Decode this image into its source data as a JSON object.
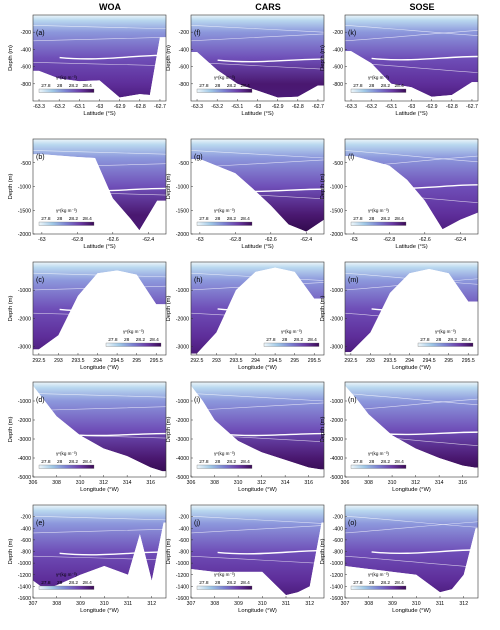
{
  "figure": {
    "columns": [
      "WOA",
      "CARS",
      "SOSE"
    ],
    "colorbar": {
      "label": "γⁿ(kg m⁻³)",
      "ticks": [
        "27.8",
        "28",
        "28.2",
        "28.4"
      ],
      "range": [
        27.7,
        28.5
      ],
      "colors": [
        "#eef6fa",
        "#9ec7e6",
        "#7a7ed0",
        "#6a3aa6",
        "#3a0a55"
      ]
    },
    "ylabel": "Depth (m)",
    "rows": [
      {
        "xlabel": "Latitude (°S)",
        "xticks": [
          "-63.3",
          "-63.2",
          "-63.1",
          "-63",
          "-62.9",
          "-62.8",
          "-62.7"
        ],
        "xrange": [
          -63.33,
          -62.67
        ],
        "yticks": [
          "-200",
          "-400",
          "-600",
          "-800"
        ],
        "yrange": [
          -1000,
          0
        ],
        "legendPos": "bottom-left",
        "panels": [
          {
            "letter": "(a)",
            "deep": 0.45
          },
          {
            "letter": "(f)",
            "deep": 0.75
          },
          {
            "letter": "(k)",
            "deep": 0.55
          }
        ]
      },
      {
        "xlabel": "Latitude (°S)",
        "xticks": [
          "-63",
          "-62.8",
          "-62.6",
          "-62.4"
        ],
        "xrange": [
          -63.05,
          -62.3
        ],
        "yticks": [
          "-500",
          "-1000",
          "-1500",
          "-2000"
        ],
        "yrange": [
          -2000,
          0
        ],
        "legendPos": "bottom-left",
        "panels": [
          {
            "letter": "(b)",
            "deep": 0.8
          },
          {
            "letter": "(g)",
            "deep": 0.85
          },
          {
            "letter": "(l)",
            "deep": 0.55
          }
        ]
      },
      {
        "xlabel": "Longitude (°W)",
        "xticks": [
          "292.5",
          "293",
          "293.5",
          "294",
          "294.5",
          "295",
          "295.5"
        ],
        "xrange": [
          292.35,
          295.75
        ],
        "yticks": [
          "-1000",
          "-2000",
          "-3000"
        ],
        "yrange": [
          -3300,
          0
        ],
        "legendPos": "bottom-right",
        "panels": [
          {
            "letter": "(c)",
            "deep": 0.6
          },
          {
            "letter": "(h)",
            "deep": 0.55
          },
          {
            "letter": "(m)",
            "deep": 0.55
          }
        ]
      },
      {
        "xlabel": "Longitude (°W)",
        "xticks": [
          "306",
          "308",
          "310",
          "312",
          "314",
          "316"
        ],
        "xrange": [
          306,
          317.3
        ],
        "yticks": [
          "-1000",
          "-2000",
          "-3000",
          "-4000",
          "-5000"
        ],
        "yrange": [
          -5000,
          0
        ],
        "legendPos": "bottom-left",
        "panels": [
          {
            "letter": "(d)",
            "deep": 0.95
          },
          {
            "letter": "(i)",
            "deep": 0.95
          },
          {
            "letter": "(n)",
            "deep": 0.85
          }
        ]
      },
      {
        "xlabel": "Longitude (°W)",
        "xticks": [
          "307",
          "308",
          "309",
          "310",
          "311",
          "312"
        ],
        "xrange": [
          307,
          312.6
        ],
        "yticks": [
          "-200",
          "-400",
          "-600",
          "-800",
          "-1000",
          "-1200",
          "-1400",
          "-1600"
        ],
        "yrange": [
          -1600,
          0
        ],
        "legendPos": "bottom-left",
        "panels": [
          {
            "letter": "(e)",
            "deep": 0.7
          },
          {
            "letter": "(j)",
            "deep": 0.6
          },
          {
            "letter": "(o)",
            "deep": 0.55
          }
        ]
      }
    ]
  },
  "chart_data": [
    {
      "type": "heatmap",
      "panel": "(a)",
      "xlabel": "Latitude (°S)",
      "ylabel": "Depth (m)",
      "xlim": [
        -63.33,
        -62.67
      ],
      "ylim": [
        -1000,
        0
      ],
      "colorbar_label": "γⁿ(kg m⁻³)",
      "colorbar_ticks": [
        27.8,
        28,
        28.2,
        28.4
      ],
      "bathymetry": [
        [
          -63.3,
          -650
        ],
        [
          -63.2,
          -740
        ],
        [
          -63.1,
          -770
        ],
        [
          -63.0,
          -760
        ],
        [
          -62.9,
          -960
        ],
        [
          -62.8,
          -920
        ],
        [
          -62.75,
          -930
        ],
        [
          -62.7,
          -260
        ]
      ]
    },
    {
      "type": "heatmap",
      "panel": "(f)",
      "xlabel": "Latitude (°S)",
      "ylabel": "Depth (m)",
      "xlim": [
        -63.33,
        -62.67
      ],
      "ylim": [
        -1000,
        0
      ],
      "colorbar_label": "γⁿ(kg m⁻³)",
      "colorbar_ticks": [
        27.8,
        28,
        28.2,
        28.4
      ],
      "bathymetry": [
        [
          -63.3,
          -430
        ],
        [
          -63.2,
          -640
        ],
        [
          -63.1,
          -800
        ],
        [
          -63.0,
          -880
        ],
        [
          -62.9,
          -960
        ],
        [
          -62.8,
          -950
        ],
        [
          -62.7,
          -820
        ]
      ]
    },
    {
      "type": "heatmap",
      "panel": "(k)",
      "xlabel": "Latitude (°S)",
      "ylabel": "Depth (m)",
      "xlim": [
        -63.33,
        -62.67
      ],
      "ylim": [
        -1000,
        0
      ],
      "colorbar_label": "γⁿ(kg m⁻³)",
      "colorbar_ticks": [
        27.8,
        28,
        28.2,
        28.4
      ],
      "bathymetry": [
        [
          -63.3,
          -420
        ],
        [
          -63.2,
          -560
        ],
        [
          -63.1,
          -800
        ],
        [
          -63.0,
          -840
        ],
        [
          -62.9,
          -950
        ],
        [
          -62.8,
          -930
        ],
        [
          -62.7,
          -780
        ]
      ]
    },
    {
      "type": "heatmap",
      "panel": "(b)",
      "xlabel": "Latitude (°S)",
      "ylabel": "Depth (m)",
      "xlim": [
        -63.05,
        -62.3
      ],
      "ylim": [
        -2000,
        0
      ],
      "colorbar_label": "γⁿ(kg m⁻³)",
      "colorbar_ticks": [
        27.8,
        28,
        28.2,
        28.4
      ],
      "bathymetry": [
        [
          -63.0,
          -320
        ],
        [
          -62.8,
          -380
        ],
        [
          -62.7,
          -400
        ],
        [
          -62.6,
          -1250
        ],
        [
          -62.5,
          -1680
        ],
        [
          -62.45,
          -1920
        ],
        [
          -62.35,
          -1300
        ]
      ]
    },
    {
      "type": "heatmap",
      "panel": "(g)",
      "xlabel": "Latitude (°S)",
      "ylabel": "Depth (m)",
      "xlim": [
        -63.05,
        -62.3
      ],
      "ylim": [
        -2000,
        0
      ],
      "colorbar_label": "γⁿ(kg m⁻³)",
      "colorbar_ticks": [
        27.8,
        28,
        28.2,
        28.4
      ],
      "bathymetry": [
        [
          -63.0,
          -420
        ],
        [
          -62.8,
          -720
        ],
        [
          -62.7,
          -1050
        ],
        [
          -62.6,
          -1400
        ],
        [
          -62.5,
          -1800
        ],
        [
          -62.4,
          -1950
        ],
        [
          -62.3,
          -1700
        ]
      ]
    },
    {
      "type": "heatmap",
      "panel": "(l)",
      "xlabel": "Latitude (°S)",
      "ylabel": "Depth (m)",
      "xlim": [
        -63.05,
        -62.3
      ],
      "ylim": [
        -2000,
        0
      ],
      "colorbar_label": "γⁿ(kg m⁻³)",
      "colorbar_ticks": [
        27.8,
        28,
        28.2,
        28.4
      ],
      "bathymetry": [
        [
          -63.0,
          -360
        ],
        [
          -62.8,
          -560
        ],
        [
          -62.7,
          -860
        ],
        [
          -62.6,
          -1300
        ],
        [
          -62.5,
          -1900
        ],
        [
          -62.4,
          -1700
        ],
        [
          -62.3,
          -1550
        ]
      ]
    },
    {
      "type": "heatmap",
      "panel": "(c)",
      "xlabel": "Longitude (°W)",
      "ylabel": "Depth (m)",
      "xlim": [
        292.35,
        295.75
      ],
      "ylim": [
        -3300,
        0
      ],
      "colorbar_label": "γⁿ(kg m⁻³)",
      "colorbar_ticks": [
        27.8,
        28,
        28.2,
        28.4
      ],
      "bathymetry": [
        [
          292.5,
          -3100
        ],
        [
          293.0,
          -2600
        ],
        [
          293.5,
          -1200
        ],
        [
          294.0,
          -400
        ],
        [
          294.5,
          -300
        ],
        [
          295.0,
          -450
        ],
        [
          295.5,
          -1500
        ]
      ]
    },
    {
      "type": "heatmap",
      "panel": "(h)",
      "xlabel": "Longitude (°W)",
      "ylabel": "Depth (m)",
      "xlim": [
        292.35,
        295.75
      ],
      "ylim": [
        -3300,
        0
      ],
      "colorbar_label": "γⁿ(kg m⁻³)",
      "colorbar_ticks": [
        27.8,
        28,
        28.2,
        28.4
      ],
      "bathymetry": [
        [
          292.5,
          -3250
        ],
        [
          293.0,
          -2500
        ],
        [
          293.5,
          -1000
        ],
        [
          294.0,
          -350
        ],
        [
          294.5,
          -200
        ],
        [
          295.0,
          -350
        ],
        [
          295.5,
          -1300
        ]
      ]
    },
    {
      "type": "heatmap",
      "panel": "(m)",
      "xlabel": "Longitude (°W)",
      "ylabel": "Depth (m)",
      "xlim": [
        292.35,
        295.75
      ],
      "ylim": [
        -3300,
        0
      ],
      "colorbar_label": "γⁿ(kg m⁻³)",
      "colorbar_ticks": [
        27.8,
        28,
        28.2,
        28.4
      ],
      "bathymetry": [
        [
          292.5,
          -3200
        ],
        [
          293.0,
          -2500
        ],
        [
          293.5,
          -1100
        ],
        [
          294.0,
          -400
        ],
        [
          294.5,
          -250
        ],
        [
          295.0,
          -400
        ],
        [
          295.5,
          -1400
        ]
      ]
    },
    {
      "type": "heatmap",
      "panel": "(d)",
      "xlabel": "Longitude (°W)",
      "ylabel": "Depth (m)",
      "xlim": [
        306,
        317.3
      ],
      "ylim": [
        -5000,
        0
      ],
      "colorbar_label": "γⁿ(kg m⁻³)",
      "colorbar_ticks": [
        27.8,
        28,
        28.2,
        28.4
      ],
      "bathymetry": [
        [
          306,
          -200
        ],
        [
          307,
          -1000
        ],
        [
          308,
          -1800
        ],
        [
          310,
          -2800
        ],
        [
          312,
          -3500
        ],
        [
          314,
          -3900
        ],
        [
          316,
          -4500
        ],
        [
          317,
          -4700
        ]
      ]
    },
    {
      "type": "heatmap",
      "panel": "(i)",
      "xlabel": "Longitude (°W)",
      "ylabel": "Depth (m)",
      "xlim": [
        306,
        317.3
      ],
      "ylim": [
        -5000,
        0
      ],
      "colorbar_label": "γⁿ(kg m⁻³)",
      "colorbar_ticks": [
        27.8,
        28,
        28.2,
        28.4
      ],
      "bathymetry": [
        [
          306,
          -200
        ],
        [
          307,
          -1000
        ],
        [
          308,
          -2000
        ],
        [
          310,
          -3100
        ],
        [
          312,
          -3700
        ],
        [
          314,
          -4100
        ],
        [
          316,
          -4500
        ],
        [
          317,
          -4600
        ]
      ]
    },
    {
      "type": "heatmap",
      "panel": "(n)",
      "xlabel": "Longitude (°W)",
      "ylabel": "Depth (m)",
      "xlim": [
        306,
        317.3
      ],
      "ylim": [
        -5000,
        0
      ],
      "colorbar_label": "γⁿ(kg m⁻³)",
      "colorbar_ticks": [
        27.8,
        28,
        28.2,
        28.4
      ],
      "bathymetry": [
        [
          306,
          -200
        ],
        [
          307,
          -900
        ],
        [
          308,
          -1700
        ],
        [
          310,
          -2800
        ],
        [
          312,
          -3500
        ],
        [
          314,
          -4000
        ],
        [
          316,
          -4400
        ],
        [
          317,
          -4500
        ]
      ]
    },
    {
      "type": "heatmap",
      "panel": "(e)",
      "xlabel": "Longitude (°W)",
      "ylabel": "Depth (m)",
      "xlim": [
        307,
        312.6
      ],
      "ylim": [
        -1600,
        0
      ],
      "colorbar_label": "γⁿ(kg m⁻³)",
      "colorbar_ticks": [
        27.8,
        28,
        28.2,
        28.4
      ],
      "bathymetry": [
        [
          307,
          -1300
        ],
        [
          307.5,
          -1450
        ],
        [
          308,
          -1380
        ],
        [
          309,
          -1200
        ],
        [
          310,
          -1050
        ],
        [
          311,
          -1200
        ],
        [
          311.5,
          -500
        ],
        [
          312,
          -1300
        ],
        [
          312.5,
          -300
        ]
      ]
    },
    {
      "type": "heatmap",
      "panel": "(j)",
      "xlabel": "Longitude (°W)",
      "ylabel": "Depth (m)",
      "xlim": [
        307,
        312.6
      ],
      "ylim": [
        -1600,
        0
      ],
      "colorbar_label": "γⁿ(kg m⁻³)",
      "colorbar_ticks": [
        27.8,
        28,
        28.2,
        28.4
      ],
      "bathymetry": [
        [
          307,
          -1100
        ],
        [
          308,
          -1150
        ],
        [
          309,
          -1150
        ],
        [
          310,
          -1150
        ],
        [
          311,
          -1550
        ],
        [
          311.5,
          -1500
        ],
        [
          312,
          -1400
        ],
        [
          312.5,
          -300
        ]
      ]
    },
    {
      "type": "heatmap",
      "panel": "(o)",
      "xlabel": "Longitude (°W)",
      "ylabel": "Depth (m)",
      "xlim": [
        307,
        312.6
      ],
      "ylim": [
        -1600,
        0
      ],
      "colorbar_label": "γⁿ(kg m⁻³)",
      "colorbar_ticks": [
        27.8,
        28,
        28.2,
        28.4
      ],
      "bathymetry": [
        [
          307,
          -1050
        ],
        [
          308,
          -1100
        ],
        [
          309,
          -1150
        ],
        [
          310,
          -1200
        ],
        [
          311,
          -1500
        ],
        [
          311.5,
          -1450
        ],
        [
          312,
          -1200
        ],
        [
          312.5,
          -400
        ]
      ]
    }
  ]
}
